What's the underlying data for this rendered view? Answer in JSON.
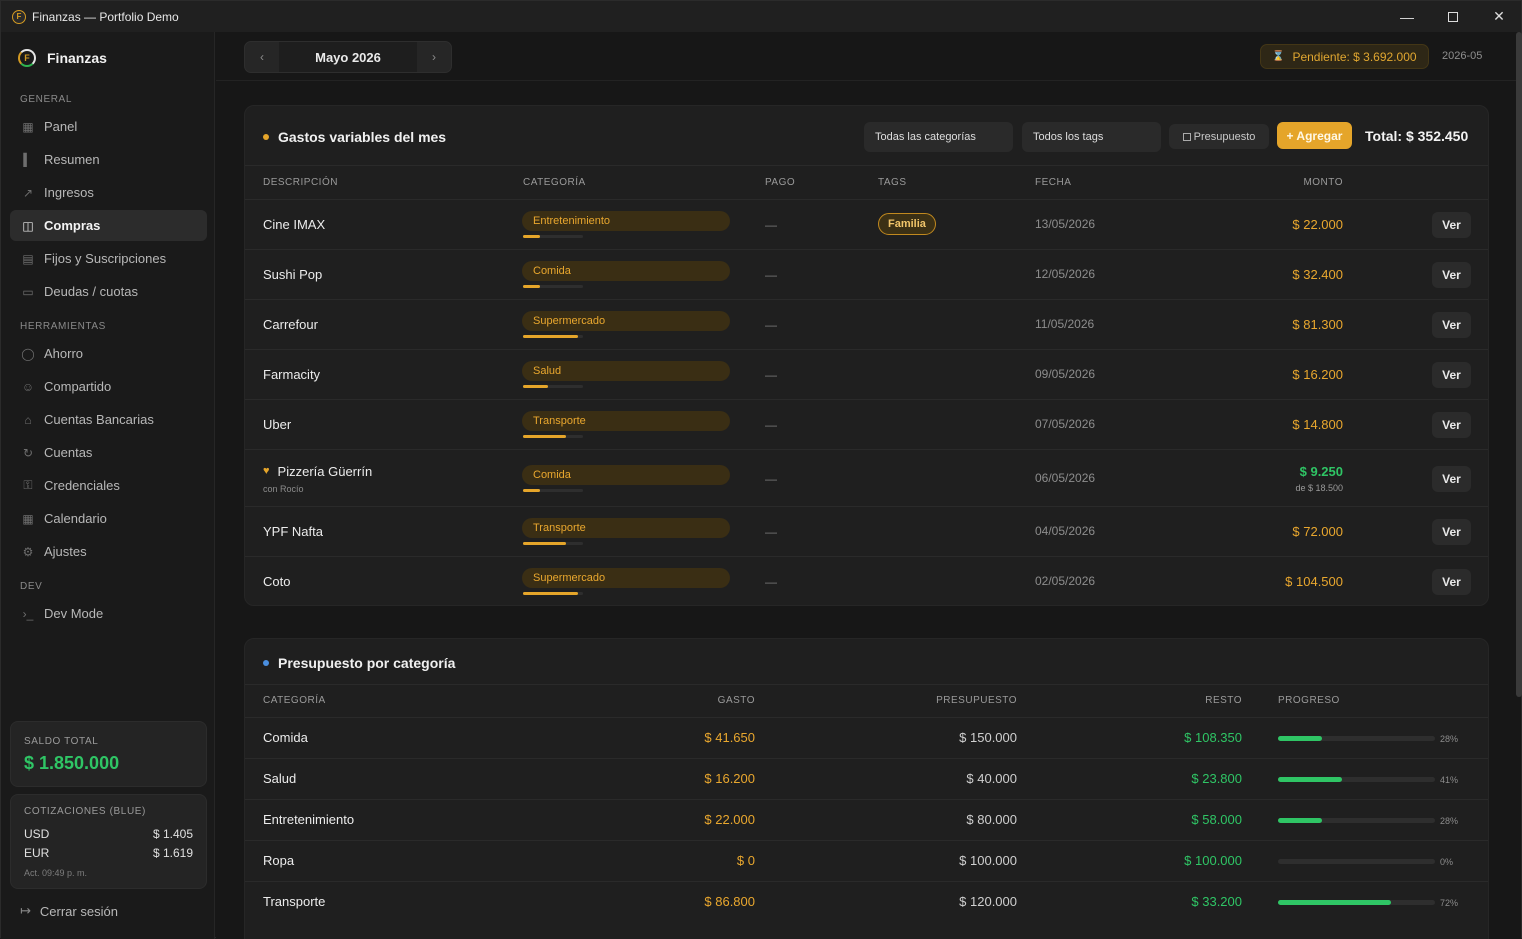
{
  "window": {
    "title": "Finanzas — Portfolio Demo"
  },
  "sidebar": {
    "brand": "Finanzas",
    "sections": [
      {
        "label": "GENERAL"
      },
      {
        "label": "HERRAMIENTAS"
      },
      {
        "label": "DEV"
      }
    ],
    "items": [
      {
        "label": "Panel",
        "icon": "grid-icon"
      },
      {
        "label": "Resumen",
        "icon": "bar-chart-icon"
      },
      {
        "label": "Ingresos",
        "icon": "trend-up-icon"
      },
      {
        "label": "Compras",
        "icon": "cart-icon",
        "active": true
      },
      {
        "label": "Fijos y Suscripciones",
        "icon": "receipt-icon"
      },
      {
        "label": "Deudas / cuotas",
        "icon": "card-icon"
      },
      {
        "label": "Ahorro",
        "icon": "piggy-bank-icon"
      },
      {
        "label": "Compartido",
        "icon": "users-icon"
      },
      {
        "label": "Cuentas Bancarias",
        "icon": "bank-icon"
      },
      {
        "label": "Cuentas",
        "icon": "repeat-icon"
      },
      {
        "label": "Credenciales",
        "icon": "key-icon"
      },
      {
        "label": "Calendario",
        "icon": "calendar-icon"
      },
      {
        "label": "Ajustes",
        "icon": "gear-icon"
      },
      {
        "label": "Dev Mode",
        "icon": "terminal-icon"
      }
    ],
    "saldo": {
      "label": "SALDO TOTAL",
      "value": "$ 1.850.000"
    },
    "cotizaciones": {
      "label": "COTIZACIONES (BLUE)",
      "usd_label": "USD",
      "usd_value": "$ 1.405",
      "eur_label": "EUR",
      "eur_value": "$ 1.619",
      "updated": "Act. 09:49 p. m."
    },
    "logout": "Cerrar sesión"
  },
  "topbar": {
    "month": "Mayo 2026",
    "pending": "Pendiente: $ 3.692.000",
    "period": "2026-05"
  },
  "expenses": {
    "title": "Gastos variables del mes",
    "filter_category": "Todas las categorías",
    "filter_tags": "Todos los tags",
    "budget_toggle": "Presupuesto",
    "add_label": "+ Agregar",
    "total": "Total: $ 352.450",
    "columns": {
      "desc": "DESCRIPCIÓN",
      "cat": "CATEGORÍA",
      "pago": "PAGO",
      "tags": "TAGS",
      "fecha": "FECHA",
      "monto": "MONTO"
    },
    "view_label": "Ver",
    "rows": [
      {
        "desc": "Cine IMAX",
        "cat": "Entretenimiento",
        "cat_progress": 0.28,
        "pago": "—",
        "tag": "Familia",
        "date": "13/05/2026",
        "amount": "$ 22.000"
      },
      {
        "desc": "Sushi Pop",
        "cat": "Comida",
        "cat_progress": 0.28,
        "pago": "—",
        "date": "12/05/2026",
        "amount": "$ 32.400"
      },
      {
        "desc": "Carrefour",
        "cat": "Supermercado",
        "cat_progress": 0.92,
        "pago": "—",
        "date": "11/05/2026",
        "amount": "$ 81.300"
      },
      {
        "desc": "Farmacity",
        "cat": "Salud",
        "cat_progress": 0.41,
        "pago": "—",
        "date": "09/05/2026",
        "amount": "$ 16.200"
      },
      {
        "desc": "Uber",
        "cat": "Transporte",
        "cat_progress": 0.72,
        "pago": "—",
        "date": "07/05/2026",
        "amount": "$ 14.800"
      },
      {
        "desc": "Pizzería Güerrín",
        "shared_with": "con Rocío",
        "cat": "Comida",
        "cat_progress": 0.28,
        "pago": "—",
        "date": "06/05/2026",
        "amount": "$ 9.250",
        "amount_of": "de $ 18.500",
        "shared": true
      },
      {
        "desc": "YPF Nafta",
        "cat": "Transporte",
        "cat_progress": 0.72,
        "pago": "—",
        "date": "04/05/2026",
        "amount": "$ 72.000"
      },
      {
        "desc": "Coto",
        "cat": "Supermercado",
        "cat_progress": 0.92,
        "pago": "—",
        "date": "02/05/2026",
        "amount": "$ 104.500"
      }
    ]
  },
  "budget": {
    "title": "Presupuesto por categoría",
    "columns": {
      "cat": "CATEGORÍA",
      "gasto": "GASTO",
      "presupuesto": "PRESUPUESTO",
      "resto": "RESTO",
      "progreso": "PROGRESO"
    },
    "rows": [
      {
        "cat": "Comida",
        "gasto": "$ 41.650",
        "presupuesto": "$ 150.000",
        "resto": "$ 108.350",
        "progress": 0.28,
        "pct": "28%"
      },
      {
        "cat": "Salud",
        "gasto": "$ 16.200",
        "presupuesto": "$ 40.000",
        "resto": "$ 23.800",
        "progress": 0.41,
        "pct": "41%"
      },
      {
        "cat": "Entretenimiento",
        "gasto": "$ 22.000",
        "presupuesto": "$ 80.000",
        "resto": "$ 58.000",
        "progress": 0.28,
        "pct": "28%"
      },
      {
        "cat": "Ropa",
        "gasto": "$ 0",
        "presupuesto": "$ 100.000",
        "resto": "$ 100.000",
        "progress": 0,
        "pct": "0%"
      },
      {
        "cat": "Transporte",
        "gasto": "$ 86.800",
        "presupuesto": "$ 120.000",
        "resto": "$ 33.200",
        "progress": 0.72,
        "pct": "72%"
      }
    ]
  },
  "colors": {
    "accent": "#e5a52a",
    "green": "#2fc565",
    "blue_dot": "#4a8fe0"
  }
}
